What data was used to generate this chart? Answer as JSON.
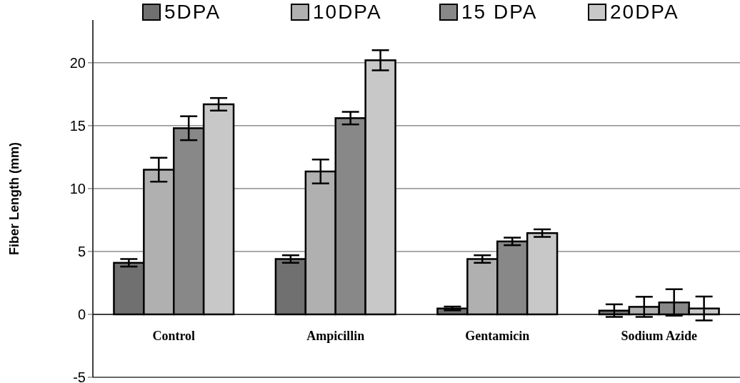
{
  "chart_data": {
    "type": "bar",
    "ylabel": "Fiber Length (mm)",
    "categories": [
      "Control",
      "Ampicillin",
      "Gentamicin",
      "Sodium Azide"
    ],
    "series": [
      {
        "name": "5DPA",
        "color": "#707070",
        "values": [
          4.1,
          4.4,
          0.47,
          0.3
        ],
        "errors": [
          0.3,
          0.3,
          0.15,
          0.5
        ]
      },
      {
        "name": "10DPA",
        "color": "#b0b0b0",
        "values": [
          11.5,
          11.36,
          4.4,
          0.6
        ],
        "errors": [
          0.95,
          0.95,
          0.3,
          0.8
        ]
      },
      {
        "name": "15 DPA",
        "color": "#888888",
        "values": [
          14.8,
          15.6,
          5.8,
          0.95
        ],
        "errors": [
          0.95,
          0.5,
          0.3,
          1.05
        ]
      },
      {
        "name": "20DPA",
        "color": "#c8c8c8",
        "values": [
          16.7,
          20.2,
          6.46,
          0.47
        ],
        "errors": [
          0.5,
          0.8,
          0.3,
          0.95
        ]
      }
    ],
    "ylim": [
      -5,
      23.4
    ],
    "yticks": [
      -5,
      0,
      5,
      10,
      15,
      20
    ],
    "grid": "y",
    "legend": "top"
  }
}
